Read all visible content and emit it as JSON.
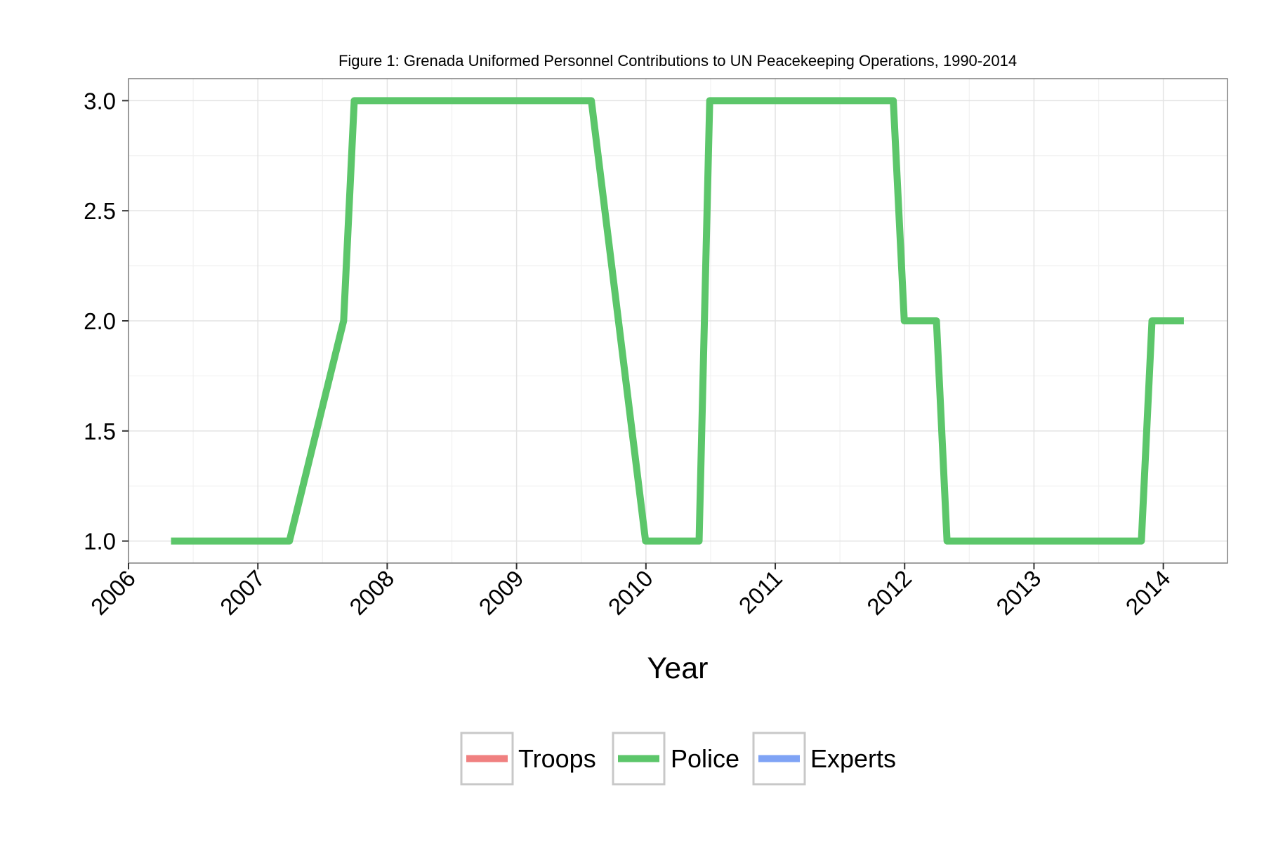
{
  "chart_data": {
    "type": "line",
    "title": "Figure 1: Grenada Uniformed Personnel Contributions to UN Peacekeeping Operations, 1990-2014",
    "xlabel": "Year",
    "ylabel": "",
    "x_axis_type": "date",
    "xlim": [
      "2006-01-01",
      "2014-07-01"
    ],
    "ylim": [
      0.9,
      3.1
    ],
    "x_ticks": [
      "2006",
      "2007",
      "2008",
      "2009",
      "2010",
      "2011",
      "2012",
      "2013",
      "2014"
    ],
    "y_ticks": [
      "1.0",
      "1.5",
      "2.0",
      "2.5",
      "3.0"
    ],
    "y_tick_values": [
      1.0,
      1.5,
      2.0,
      2.5,
      3.0
    ],
    "grid": true,
    "legend_position": "bottom",
    "legend": [
      {
        "name": "Troops",
        "color": "#f08080"
      },
      {
        "name": "Police",
        "color": "#5cc66a"
      },
      {
        "name": "Experts",
        "color": "#7fa3f5"
      }
    ],
    "series": [
      {
        "name": "Police",
        "color": "#5cc66a",
        "points": [
          {
            "date": "2006-05-01",
            "y": 1
          },
          {
            "date": "2007-03-31",
            "y": 1
          },
          {
            "date": "2007-08-31",
            "y": 2
          },
          {
            "date": "2007-09-30",
            "y": 3
          },
          {
            "date": "2009-07-31",
            "y": 3
          },
          {
            "date": "2009-12-31",
            "y": 1
          },
          {
            "date": "2010-05-31",
            "y": 1
          },
          {
            "date": "2010-06-30",
            "y": 3
          },
          {
            "date": "2011-11-30",
            "y": 3
          },
          {
            "date": "2011-12-31",
            "y": 2
          },
          {
            "date": "2012-03-31",
            "y": 2
          },
          {
            "date": "2012-04-30",
            "y": 1
          },
          {
            "date": "2013-10-31",
            "y": 1
          },
          {
            "date": "2013-11-30",
            "y": 2
          },
          {
            "date": "2014-02-28",
            "y": 2
          }
        ]
      }
    ]
  }
}
